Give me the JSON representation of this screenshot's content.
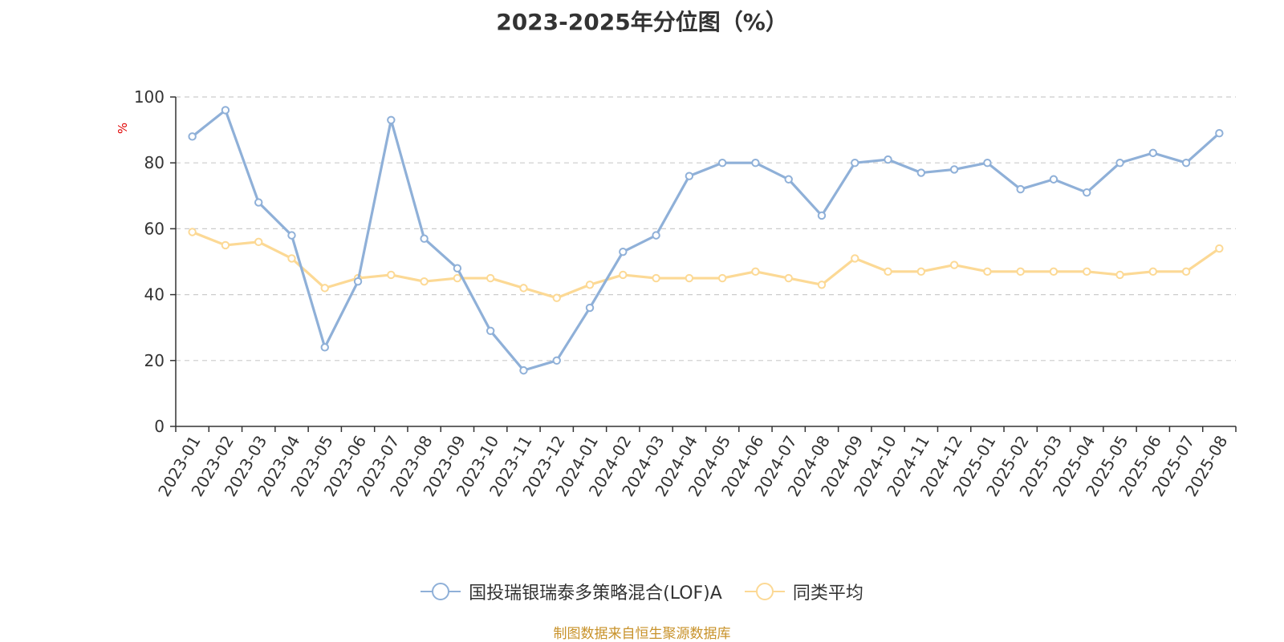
{
  "chart_data": {
    "type": "line",
    "title": "2023-2025年分位图（%）",
    "ylabel": "%",
    "ylim": [
      0,
      100
    ],
    "yticks": [
      0,
      20,
      40,
      60,
      80,
      100
    ],
    "grid": true,
    "legend_position": "bottom",
    "categories": [
      "2023-01",
      "2023-02",
      "2023-03",
      "2023-04",
      "2023-05",
      "2023-06",
      "2023-07",
      "2023-08",
      "2023-09",
      "2023-10",
      "2023-11",
      "2023-12",
      "2024-01",
      "2024-02",
      "2024-03",
      "2024-04",
      "2024-05",
      "2024-06",
      "2024-07",
      "2024-08",
      "2024-09",
      "2024-10",
      "2024-11",
      "2024-12",
      "2025-01",
      "2025-02",
      "2025-03",
      "2025-04",
      "2025-05",
      "2025-06",
      "2025-07",
      "2025-08"
    ],
    "series": [
      {
        "name": "国投瑞银瑞泰多策略混合(LOF)A",
        "color": "#8fb0d8",
        "values": [
          88,
          96,
          68,
          58,
          24,
          44,
          93,
          57,
          48,
          29,
          17,
          20,
          36,
          53,
          58,
          76,
          80,
          80,
          75,
          64,
          80,
          81,
          77,
          78,
          80,
          72,
          75,
          71,
          80,
          83,
          80,
          89
        ]
      },
      {
        "name": "同类平均",
        "color": "#fcd995",
        "values": [
          59,
          55,
          56,
          51,
          42,
          45,
          46,
          44,
          45,
          45,
          42,
          39,
          43,
          46,
          45,
          45,
          45,
          47,
          45,
          43,
          51,
          47,
          47,
          49,
          47,
          47,
          47,
          47,
          46,
          47,
          47,
          54
        ]
      }
    ]
  },
  "source_note": "制图数据来自恒生聚源数据库"
}
